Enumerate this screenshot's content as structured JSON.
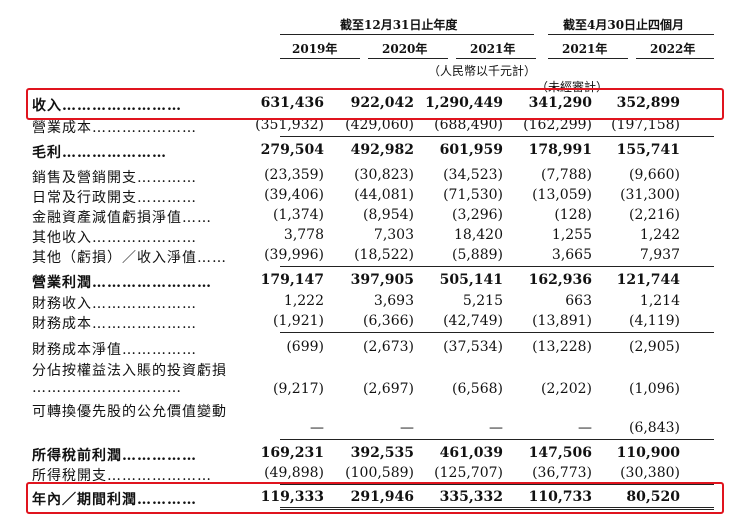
{
  "header": {
    "group1_title": "截至12月31日止年度",
    "group2_title": "截至4月30日止四個月",
    "years": [
      "2019年",
      "2020年",
      "2021年",
      "2021年",
      "2022年"
    ],
    "unit_note": "（人民幣以千元計）",
    "unaudited_note": "（未經審計）"
  },
  "rows": [
    {
      "label": "收入……………………",
      "bold": true,
      "values": [
        "631,436",
        "922,042",
        "1,290,449",
        "341,290",
        "352,899"
      ]
    },
    {
      "label": "營業成本…………………",
      "bold": false,
      "values": [
        "(351,932)",
        "(429,060)",
        "(688,490)",
        "(162,299)",
        "(197,158)"
      ]
    },
    {
      "label": "毛利…………………",
      "bold": true,
      "values": [
        "279,504",
        "492,982",
        "601,959",
        "178,991",
        "155,741"
      ]
    },
    {
      "label": "銷售及營銷開支…………",
      "bold": false,
      "values": [
        "(23,359)",
        "(30,823)",
        "(34,523)",
        "(7,788)",
        "(9,660)"
      ]
    },
    {
      "label": "日常及行政開支…………",
      "bold": false,
      "values": [
        "(39,406)",
        "(44,081)",
        "(71,530)",
        "(13,059)",
        "(31,300)"
      ]
    },
    {
      "label": "金融資產減值虧損淨值……",
      "bold": false,
      "values": [
        "(1,374)",
        "(8,954)",
        "(3,296)",
        "(128)",
        "(2,216)"
      ]
    },
    {
      "label": "其他收入…………………",
      "bold": false,
      "values": [
        "3,778",
        "7,303",
        "18,420",
        "1,255",
        "1,242"
      ]
    },
    {
      "label": "其他（虧損）／收入淨值……",
      "bold": false,
      "values": [
        "(39,996)",
        "(18,522)",
        "(5,889)",
        "3,665",
        "7,937"
      ]
    },
    {
      "label": "營業利潤……………………",
      "bold": true,
      "values": [
        "179,147",
        "397,905",
        "505,141",
        "162,936",
        "121,744"
      ]
    },
    {
      "label": "財務收入…………………",
      "bold": false,
      "values": [
        "1,222",
        "3,693",
        "5,215",
        "663",
        "1,214"
      ]
    },
    {
      "label": "財務成本…………………",
      "bold": false,
      "values": [
        "(1,921)",
        "(6,366)",
        "(42,749)",
        "(13,891)",
        "(4,119)"
      ]
    },
    {
      "label": "財務成本淨值……………",
      "bold": false,
      "values": [
        "(699)",
        "(2,673)",
        "(37,534)",
        "(13,228)",
        "(2,905)"
      ]
    },
    {
      "label": "分佔按權益法入賬的投資虧損",
      "label2": "…………………………",
      "bold": false,
      "values": [
        "(9,217)",
        "(2,697)",
        "(6,568)",
        "(2,202)",
        "(1,096)"
      ]
    },
    {
      "label": "可轉換優先股的公允價值變動",
      "bold": false,
      "values": [
        "—",
        "—",
        "—",
        "—",
        "(6,843)"
      ]
    },
    {
      "label": "所得稅前利潤……………",
      "bold": true,
      "values": [
        "169,231",
        "392,535",
        "461,039",
        "147,506",
        "110,900"
      ]
    },
    {
      "label": "所得稅開支…………………",
      "bold": false,
      "values": [
        "(49,898)",
        "(100,589)",
        "(125,707)",
        "(36,773)",
        "(30,380)"
      ]
    },
    {
      "label": "年內／期間利潤…………",
      "bold": true,
      "values": [
        "119,333",
        "291,946",
        "335,332",
        "110,733",
        "80,520"
      ]
    }
  ]
}
